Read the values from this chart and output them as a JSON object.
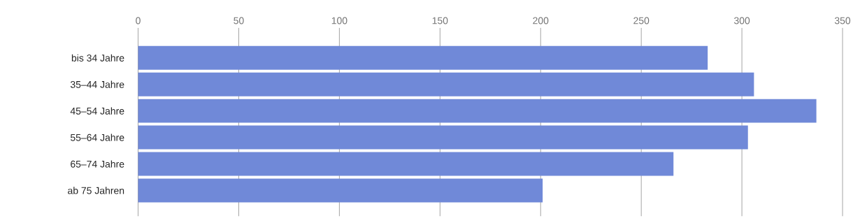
{
  "chart_data": {
    "type": "bar",
    "orientation": "horizontal",
    "categories": [
      "bis 34 Jahre",
      "35–44 Jahre",
      "45–54 Jahre",
      "55–64 Jahre",
      "65–74 Jahre",
      "ab 75 Jahren"
    ],
    "values": [
      283,
      306,
      337,
      303,
      266,
      201
    ],
    "color": "#7089d8",
    "xlim": [
      0,
      350
    ],
    "xticks": [
      0,
      50,
      100,
      150,
      200,
      250,
      300,
      350
    ],
    "grid": "x"
  }
}
